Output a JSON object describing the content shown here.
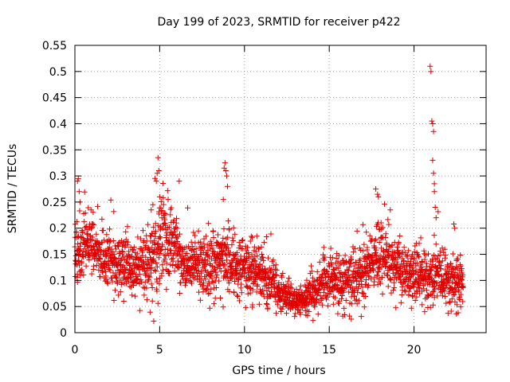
{
  "chart_data": {
    "type": "scatter",
    "title": "Day 199 of 2023, SRMTID for receiver p422",
    "xlabel": "GPS time / hours",
    "ylabel": "SRMTID / TECUs",
    "xlim": [
      0,
      24.25
    ],
    "ylim": [
      0,
      0.55
    ],
    "xticks": [
      0,
      5,
      10,
      15,
      20
    ],
    "yticks": [
      0,
      0.05,
      0.1,
      0.15,
      0.2,
      0.25,
      0.3,
      0.35,
      0.4,
      0.45,
      0.5,
      0.55
    ],
    "xtick_labels": [
      "0",
      "5",
      "10",
      "15",
      "20"
    ],
    "ytick_labels": [
      "0",
      "0.05",
      "0.1",
      "0.15",
      "0.2",
      "0.25",
      "0.3",
      "0.35",
      "0.4",
      "0.45",
      "0.5",
      "0.55"
    ],
    "grid": true,
    "marker": "+",
    "color": "#e00000",
    "x_range_observed": [
      0,
      22.9
    ],
    "envelope": {
      "x": [
        0,
        0.3,
        0.8,
        1.5,
        2.5,
        3.5,
        4.3,
        4.8,
        5.2,
        5.8,
        6.5,
        7.5,
        8.5,
        9.0,
        9.5,
        10.5,
        11.5,
        12.0,
        12.5,
        13.0,
        13.5,
        14.0,
        15.0,
        16.0,
        17.0,
        17.5,
        18.0,
        19.0,
        20.0,
        20.8,
        21.1,
        21.4,
        22.0,
        22.9
      ],
      "mean": [
        0.13,
        0.16,
        0.17,
        0.14,
        0.13,
        0.12,
        0.13,
        0.16,
        0.18,
        0.17,
        0.13,
        0.13,
        0.14,
        0.13,
        0.12,
        0.12,
        0.1,
        0.08,
        0.07,
        0.06,
        0.06,
        0.08,
        0.1,
        0.1,
        0.11,
        0.14,
        0.15,
        0.12,
        0.11,
        0.1,
        0.12,
        0.11,
        0.1,
        0.09
      ],
      "spread": [
        0.04,
        0.05,
        0.04,
        0.04,
        0.04,
        0.04,
        0.05,
        0.06,
        0.06,
        0.05,
        0.04,
        0.04,
        0.05,
        0.05,
        0.04,
        0.04,
        0.04,
        0.03,
        0.025,
        0.02,
        0.02,
        0.03,
        0.04,
        0.04,
        0.04,
        0.05,
        0.05,
        0.04,
        0.04,
        0.04,
        0.05,
        0.04,
        0.04,
        0.035
      ]
    },
    "outliers": [
      [
        0.15,
        0.29
      ],
      [
        0.2,
        0.295
      ],
      [
        0.25,
        0.27
      ],
      [
        0.3,
        0.25
      ],
      [
        0.95,
        0.235
      ],
      [
        4.5,
        0.235
      ],
      [
        4.6,
        0.245
      ],
      [
        4.65,
        0.022
      ],
      [
        4.8,
        0.29
      ],
      [
        4.85,
        0.305
      ],
      [
        4.9,
        0.335
      ],
      [
        4.95,
        0.31
      ],
      [
        5.0,
        0.26
      ],
      [
        5.5,
        0.255
      ],
      [
        6.15,
        0.29
      ],
      [
        8.75,
        0.255
      ],
      [
        8.8,
        0.315
      ],
      [
        8.85,
        0.325
      ],
      [
        8.9,
        0.31
      ],
      [
        8.95,
        0.3
      ],
      [
        9.0,
        0.28
      ],
      [
        17.85,
        0.265
      ],
      [
        17.9,
        0.26
      ],
      [
        20.95,
        0.51
      ],
      [
        21.0,
        0.5
      ],
      [
        21.05,
        0.405
      ],
      [
        21.1,
        0.4
      ],
      [
        21.15,
        0.385
      ],
      [
        21.1,
        0.33
      ],
      [
        21.15,
        0.305
      ],
      [
        21.2,
        0.285
      ],
      [
        21.2,
        0.27
      ],
      [
        21.25,
        0.24
      ],
      [
        21.3,
        0.22
      ],
      [
        22.35,
        0.208
      ],
      [
        22.4,
        0.2
      ]
    ],
    "sample_count": 2400,
    "random_seed": 199
  }
}
